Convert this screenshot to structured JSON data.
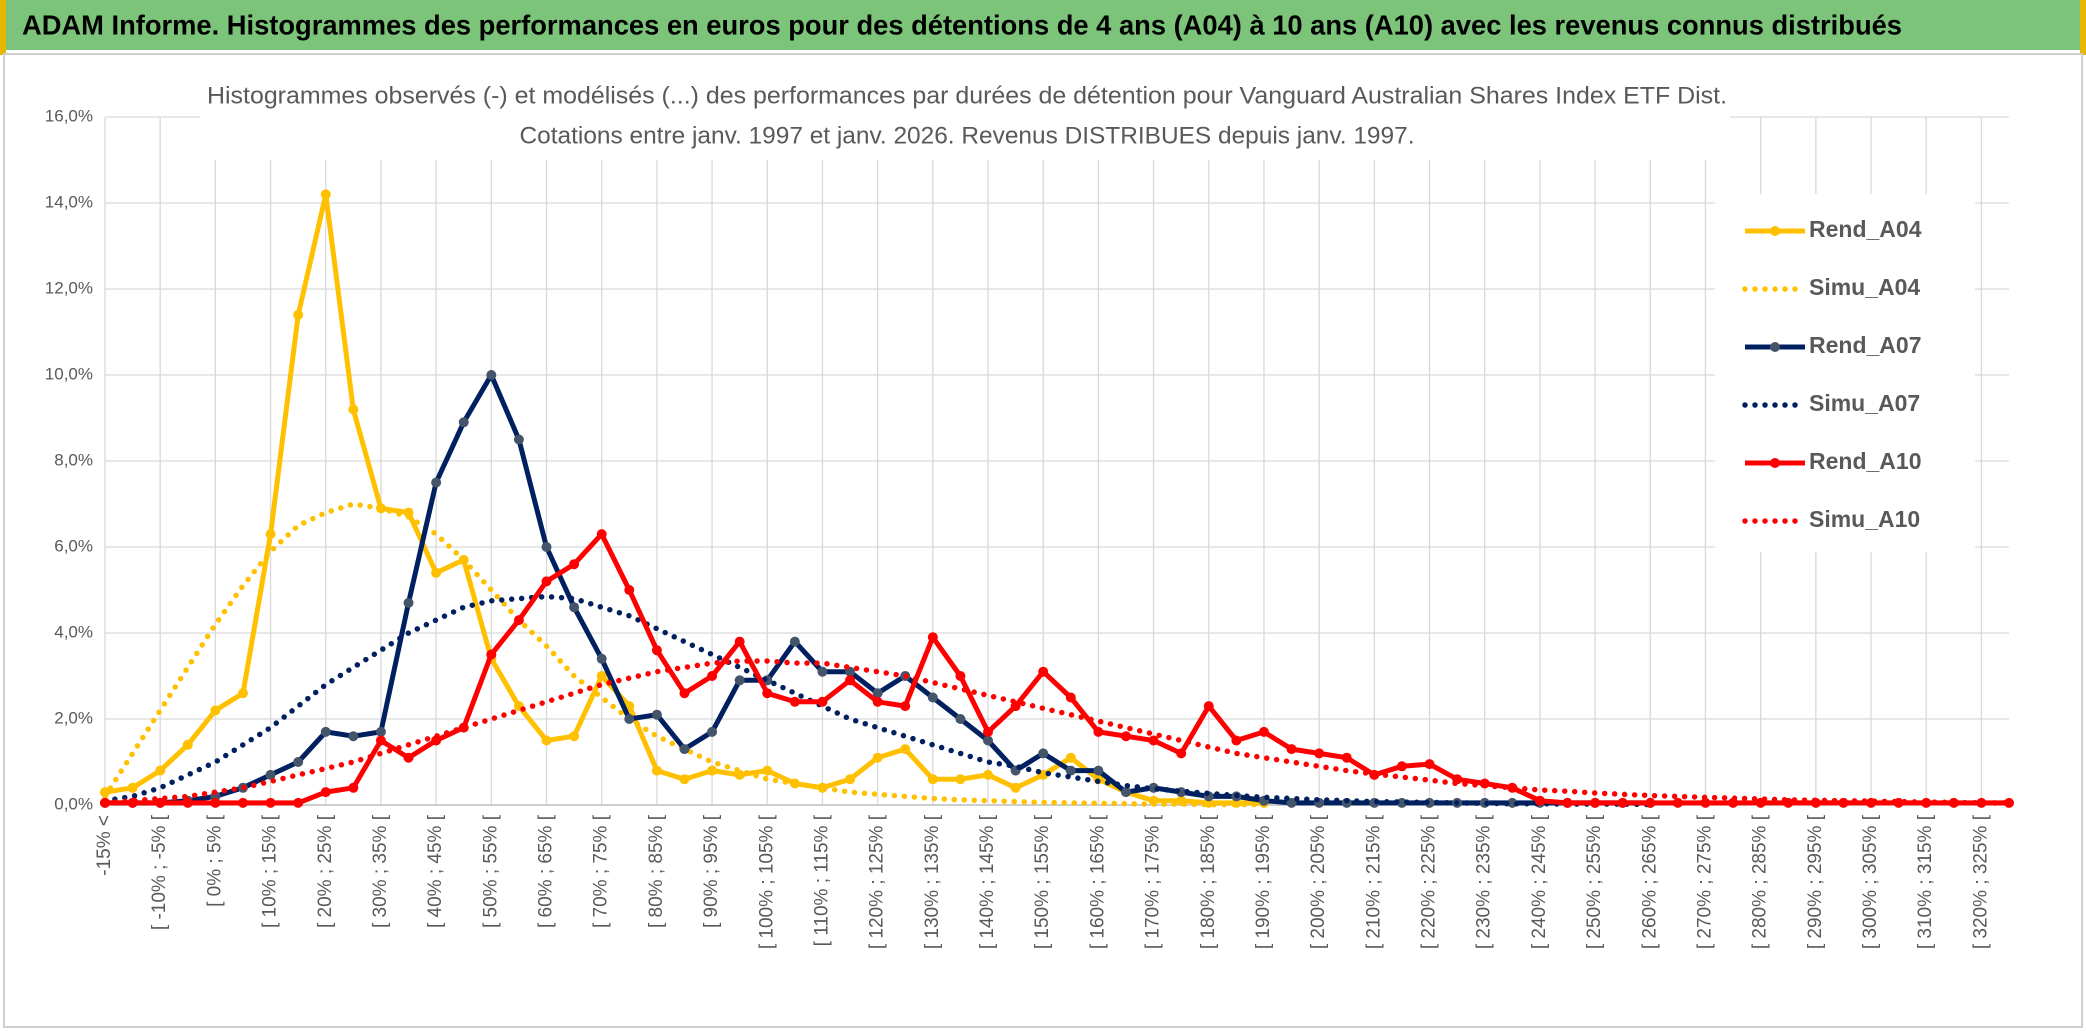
{
  "header": {
    "title": "ADAM Informe. Histogrammes des performances en euros pour des détentions de 4 ans (A04) à 10 ans (A10) avec les revenus connus distribués"
  },
  "chart_data": {
    "type": "line",
    "title": "Histogrammes observés (-) et modélisés (...) des performances par durées de détention pour Vanguard Australian Shares Index ETF Dist.",
    "subtitle": "Cotations entre janv. 1997 et janv. 2026. Revenus DISTRIBUES depuis janv. 1997.",
    "categories": [
      "-15% <",
      null,
      "[ -10% ; -5% [",
      null,
      "[ 0% ; 5% [",
      null,
      "[ 10% ; 15% [",
      null,
      "[ 20% ; 25% [",
      null,
      "[ 30% ; 35% [",
      null,
      "[ 40% ; 45% [",
      null,
      "[ 50% ; 55% [",
      null,
      "[ 60% ; 65% [",
      null,
      "[ 70% ; 75% [",
      null,
      "[ 80% ; 85% [",
      null,
      "[ 90% ; 95% [",
      null,
      "[ 100% ; 105% [",
      null,
      "[ 110% ; 115% [",
      null,
      "[ 120% ; 125% [",
      null,
      "[ 130% ; 135% [",
      null,
      "[ 140% ; 145% [",
      null,
      "[ 150% ; 155% [",
      null,
      "[ 160% ; 165% [",
      null,
      "[ 170% ; 175% [",
      null,
      "[ 180% ; 185% [",
      null,
      "[ 190% ; 195% [",
      null,
      "[ 200% ; 205% [",
      null,
      "[ 210% ; 215% [",
      null,
      "[ 220% ; 225% [",
      null,
      "[ 230% ; 235% [",
      null,
      "[ 240% ; 245% [",
      null,
      "[ 250% ; 255% [",
      null,
      "[ 260% ; 265% [",
      null,
      "[ 270% ; 275% [",
      null,
      "[ 280% ; 285% [",
      null,
      "[ 290% ; 295% [",
      null,
      "[ 300% ; 305% [",
      null,
      "[ 310% ; 315% [",
      null,
      "[ 320% ; 325% [",
      null
    ],
    "ylim": [
      0,
      16
    ],
    "yticks": [
      {
        "value": 0,
        "label": "0,0%"
      },
      {
        "value": 2,
        "label": "2,0%"
      },
      {
        "value": 4,
        "label": "4,0%"
      },
      {
        "value": 6,
        "label": "6,0%"
      },
      {
        "value": 8,
        "label": "8,0%"
      },
      {
        "value": 10,
        "label": "10,0%"
      },
      {
        "value": 12,
        "label": "12,0%"
      },
      {
        "value": 14,
        "label": "14,0%"
      },
      {
        "value": 16,
        "label": "16,0%"
      }
    ],
    "grid": true,
    "legend": "right",
    "series": [
      {
        "name": "Rend_A04",
        "color": "#ffc000",
        "style": "solid",
        "marker": true,
        "values": [
          0.3,
          0.4,
          0.8,
          1.4,
          2.2,
          2.6,
          6.3,
          11.4,
          14.2,
          9.2,
          6.9,
          6.8,
          5.4,
          5.7,
          3.4,
          2.3,
          1.5,
          1.6,
          3.0,
          2.3,
          0.8,
          0.6,
          0.8,
          0.7,
          0.8,
          0.5,
          0.4,
          0.6,
          1.1,
          1.3,
          0.6,
          0.6,
          0.7,
          0.4,
          0.7,
          1.1,
          0.6,
          0.3,
          0.1,
          0.1,
          0.05,
          0.05,
          0.05,
          null,
          null,
          null,
          null,
          null,
          null,
          null,
          null,
          null,
          null,
          null,
          null,
          null,
          null,
          null,
          null,
          null,
          null,
          null,
          null,
          null,
          null,
          null,
          null,
          null,
          null,
          null
        ]
      },
      {
        "name": "Simu_A04",
        "color": "#ffc000",
        "style": "dotted",
        "marker": false,
        "values": [
          0.2,
          1.2,
          2.2,
          3.2,
          4.2,
          5.1,
          5.9,
          6.5,
          6.8,
          7.0,
          6.9,
          6.7,
          6.3,
          5.7,
          5.0,
          4.3,
          3.7,
          3.0,
          2.5,
          2.0,
          1.6,
          1.3,
          1.0,
          0.8,
          0.6,
          0.5,
          0.4,
          0.3,
          0.25,
          0.2,
          0.15,
          0.12,
          0.1,
          0.08,
          0.06,
          0.05,
          0.04,
          0.03,
          0.02,
          0.02,
          0.01,
          0.01,
          0.01,
          null,
          null,
          null,
          null,
          null,
          null,
          null,
          null,
          null,
          null,
          null,
          null,
          null,
          null,
          null,
          null,
          null,
          null,
          null,
          null,
          null,
          null,
          null,
          null,
          null,
          null,
          null
        ]
      },
      {
        "name": "Rend_A07",
        "color": "#002060",
        "marker_color": "#44546a",
        "style": "solid",
        "marker": true,
        "values": [
          0.05,
          0.05,
          0.05,
          0.1,
          0.2,
          0.4,
          0.7,
          1.0,
          1.7,
          1.6,
          1.7,
          4.7,
          7.5,
          8.9,
          10.0,
          8.5,
          6.0,
          4.6,
          3.4,
          2.0,
          2.1,
          1.3,
          1.7,
          2.9,
          2.9,
          3.8,
          3.1,
          3.1,
          2.6,
          3.0,
          2.5,
          2.0,
          1.5,
          0.8,
          1.2,
          0.8,
          0.8,
          0.3,
          0.4,
          0.3,
          0.2,
          0.2,
          0.1,
          0.05,
          0.05,
          0.05,
          0.05,
          0.05,
          0.05,
          0.05,
          0.05,
          0.05,
          0.05,
          0.05,
          0.05,
          0.05,
          0.05,
          null,
          null,
          null,
          null,
          null,
          null,
          null,
          null,
          null,
          null,
          null,
          null,
          null
        ]
      },
      {
        "name": "Simu_A07",
        "color": "#002060",
        "style": "dotted",
        "marker": false,
        "values": [
          0.1,
          0.2,
          0.4,
          0.7,
          1.0,
          1.4,
          1.8,
          2.3,
          2.8,
          3.2,
          3.6,
          4.0,
          4.3,
          4.6,
          4.75,
          4.8,
          4.85,
          4.8,
          4.6,
          4.4,
          4.1,
          3.8,
          3.5,
          3.2,
          2.9,
          2.6,
          2.3,
          2.0,
          1.8,
          1.6,
          1.4,
          1.2,
          1.0,
          0.9,
          0.75,
          0.65,
          0.55,
          0.45,
          0.38,
          0.32,
          0.27,
          0.22,
          0.18,
          0.15,
          0.12,
          0.1,
          0.08,
          0.07,
          0.06,
          0.05,
          0.04,
          0.03,
          0.03,
          0.02,
          0.02,
          0.02,
          0.01,
          null,
          null,
          null,
          null,
          null,
          null,
          null,
          null,
          null,
          null,
          null,
          null,
          null
        ]
      },
      {
        "name": "Rend_A10",
        "color": "#ff0000",
        "style": "solid",
        "marker": true,
        "values": [
          0.05,
          0.05,
          0.05,
          0.05,
          0.05,
          0.05,
          0.05,
          0.05,
          0.3,
          0.4,
          1.5,
          1.1,
          1.5,
          1.8,
          3.5,
          4.3,
          5.2,
          5.6,
          6.3,
          5.0,
          3.6,
          2.6,
          3.0,
          3.8,
          2.6,
          2.4,
          2.4,
          2.9,
          2.4,
          2.3,
          3.9,
          3.0,
          1.7,
          2.3,
          3.1,
          2.5,
          1.7,
          1.6,
          1.5,
          1.2,
          2.3,
          1.5,
          1.7,
          1.3,
          1.2,
          1.1,
          0.7,
          0.9,
          0.95,
          0.6,
          0.5,
          0.4,
          0.1,
          0.05,
          0.05,
          0.05,
          0.05,
          0.05,
          0.05,
          0.05,
          0.05,
          0.05,
          0.05,
          0.05,
          0.05,
          0.05,
          0.05,
          0.05,
          0.05,
          0.05
        ]
      },
      {
        "name": "Simu_A10",
        "color": "#ff0000",
        "style": "dotted",
        "marker": false,
        "values": [
          0.05,
          0.1,
          0.15,
          0.2,
          0.3,
          0.4,
          0.55,
          0.7,
          0.85,
          1.0,
          1.2,
          1.4,
          1.6,
          1.8,
          2.0,
          2.2,
          2.4,
          2.6,
          2.8,
          2.95,
          3.1,
          3.2,
          3.3,
          3.35,
          3.35,
          3.3,
          3.3,
          3.2,
          3.1,
          3.0,
          2.85,
          2.7,
          2.55,
          2.4,
          2.25,
          2.1,
          1.95,
          1.8,
          1.65,
          1.5,
          1.35,
          1.2,
          1.1,
          1.0,
          0.9,
          0.8,
          0.72,
          0.65,
          0.58,
          0.5,
          0.45,
          0.4,
          0.35,
          0.32,
          0.28,
          0.25,
          0.22,
          0.2,
          0.18,
          0.16,
          0.14,
          0.12,
          0.11,
          0.1,
          0.09,
          0.08,
          0.07,
          0.06,
          0.05,
          0.05
        ]
      }
    ]
  }
}
